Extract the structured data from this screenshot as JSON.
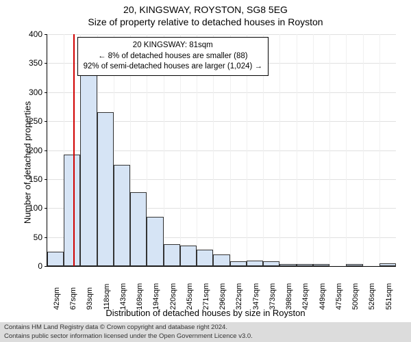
{
  "title_line1": "20, KINGSWAY, ROYSTON, SG8 5EG",
  "title_line2": "Size of property relative to detached houses in Royston",
  "ylabel": "Number of detached properties",
  "xlabel": "Distribution of detached houses by size in Royston",
  "chart": {
    "type": "histogram",
    "ylim": [
      0,
      400
    ],
    "ytick_step": 50,
    "background_color": "#ffffff",
    "grid_color": "#e0e0e0",
    "bar_fill": "#d6e4f5",
    "bar_stroke": "#333333",
    "marker_color": "#d00000",
    "bins": [
      {
        "label": "42sqm",
        "count": 25
      },
      {
        "label": "67sqm",
        "count": 192
      },
      {
        "label": "93sqm",
        "count": 335
      },
      {
        "label": "118sqm",
        "count": 265
      },
      {
        "label": "143sqm",
        "count": 175
      },
      {
        "label": "169sqm",
        "count": 128
      },
      {
        "label": "194sqm",
        "count": 85
      },
      {
        "label": "220sqm",
        "count": 38
      },
      {
        "label": "245sqm",
        "count": 35
      },
      {
        "label": "271sqm",
        "count": 28
      },
      {
        "label": "296sqm",
        "count": 20
      },
      {
        "label": "322sqm",
        "count": 8
      },
      {
        "label": "347sqm",
        "count": 10
      },
      {
        "label": "373sqm",
        "count": 8
      },
      {
        "label": "398sqm",
        "count": 4
      },
      {
        "label": "424sqm",
        "count": 3
      },
      {
        "label": "449sqm",
        "count": 4
      },
      {
        "label": "475sqm",
        "count": 0
      },
      {
        "label": "500sqm",
        "count": 4
      },
      {
        "label": "526sqm",
        "count": 0
      },
      {
        "label": "551sqm",
        "count": 5
      }
    ],
    "marker_x_position": 1.55,
    "annotation": {
      "line1": "20 KINGSWAY: 81sqm",
      "line2": "← 8% of detached houses are smaller (88)",
      "line3": "92% of semi-detached houses are larger (1,024) →"
    }
  },
  "footer": {
    "line1": "Contains HM Land Registry data © Crown copyright and database right 2024.",
    "line2": "Contains public sector information licensed under the Open Government Licence v3.0."
  }
}
